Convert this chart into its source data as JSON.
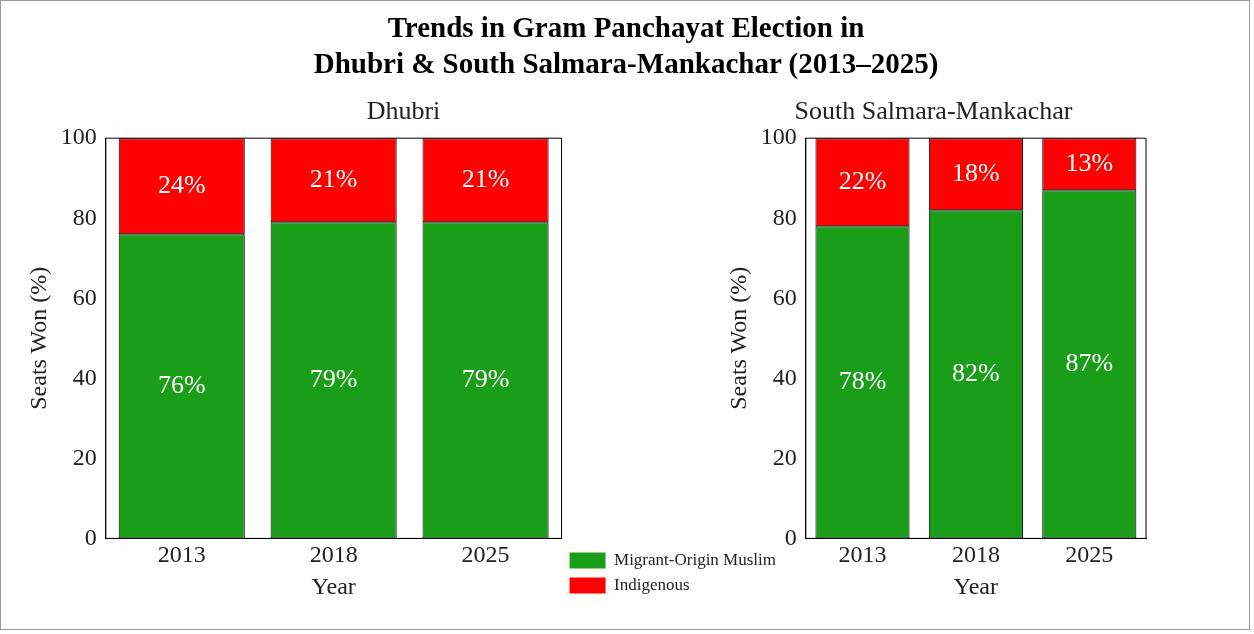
{
  "chart_data": [
    {
      "type": "bar",
      "title": "Trends in Gram Panchayat Election in\nDhubri & South Salmara-Mankachar (2013–2025)",
      "subtitle": "Dhubri",
      "xlabel": "Year",
      "ylabel": "Seats Won (%)",
      "categories": [
        "2013",
        "2018",
        "2025"
      ],
      "stacked": true,
      "data_labels": true,
      "grid": false,
      "legend": "bottom",
      "ylim": [
        0,
        100
      ],
      "yticks": [
        0,
        20,
        40,
        60,
        80,
        100
      ],
      "series": [
        {
          "name": "Migrant-Origin Muslim",
          "color": "#1a9e1a",
          "values": [
            76,
            79,
            79
          ],
          "value_labels": [
            "76%",
            "79%",
            "79%"
          ]
        },
        {
          "name": "Indigenous",
          "color": "#ff0000",
          "values": [
            24,
            21,
            21
          ],
          "value_labels": [
            "24%",
            "21%",
            "21%"
          ]
        }
      ]
    },
    {
      "type": "bar",
      "title": "South Salmara-Mankachar",
      "xlabel": "Year",
      "ylabel": "Seats Won (%)",
      "categories": [
        "2013",
        "2018",
        "2025"
      ],
      "stacked": true,
      "data_labels": true,
      "grid": false,
      "ylim": [
        0,
        100
      ],
      "yticks": [
        0,
        20,
        40,
        60,
        80,
        100
      ],
      "series": [
        {
          "color": "#1a9e1a",
          "values": [
            78,
            82,
            87
          ],
          "value_labels": [
            "78%",
            "82%",
            "87%"
          ]
        },
        {
          "color": "#ff0000",
          "values": [
            22,
            18,
            13
          ],
          "value_labels": [
            "22%",
            "18%",
            "13%"
          ]
        }
      ]
    }
  ]
}
